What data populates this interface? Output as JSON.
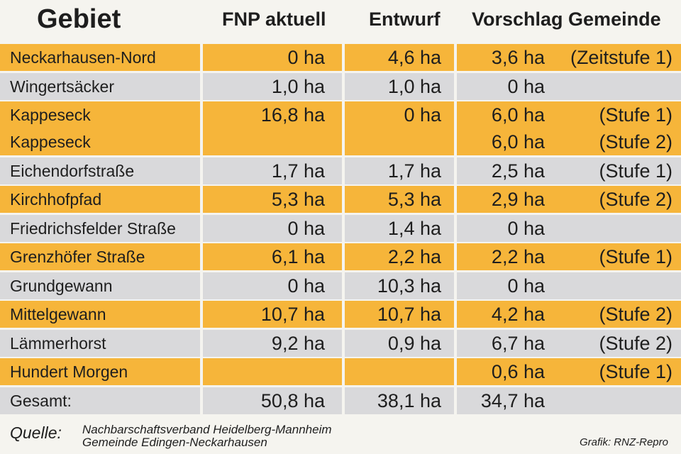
{
  "header": {
    "gebiet": "Gebiet",
    "fnp": "FNP aktuell",
    "entwurf": "Entwurf",
    "vorschlag": "Vorschlag Gemeinde"
  },
  "colors": {
    "yellow": "#f6b53a",
    "gray": "#d9d9db"
  },
  "rows": [
    {
      "bg": "yellow",
      "lines": [
        {
          "name": "Neckarhausen-Nord",
          "fnp": "0 ha",
          "entwurf": "4,6 ha",
          "vorschlag": "3,6 ha",
          "note": "(Zeitstufe 1)"
        }
      ]
    },
    {
      "bg": "gray",
      "lines": [
        {
          "name": "Wingertsäcker",
          "fnp": "1,0 ha",
          "entwurf": "1,0 ha",
          "vorschlag": "0 ha",
          "note": ""
        }
      ]
    },
    {
      "bg": "yellow",
      "lines": [
        {
          "name": "Kappeseck",
          "fnp": "16,8 ha",
          "entwurf": "0 ha",
          "vorschlag": "6,0 ha",
          "note": "(Stufe 1)"
        },
        {
          "name": "Kappeseck",
          "fnp": "",
          "entwurf": "",
          "vorschlag": "6,0 ha",
          "note": "(Stufe 2)"
        }
      ]
    },
    {
      "bg": "gray",
      "lines": [
        {
          "name": "Eichendorfstraße",
          "fnp": "1,7 ha",
          "entwurf": "1,7 ha",
          "vorschlag": "2,5 ha",
          "note": "(Stufe 1)"
        }
      ]
    },
    {
      "bg": "yellow",
      "lines": [
        {
          "name": "Kirchhofpfad",
          "fnp": "5,3 ha",
          "entwurf": "5,3 ha",
          "vorschlag": "2,9 ha",
          "note": "(Stufe 2)"
        }
      ]
    },
    {
      "bg": "gray",
      "lines": [
        {
          "name": "Friedrichsfelder Straße",
          "fnp": "0 ha",
          "entwurf": "1,4 ha",
          "vorschlag": "0 ha",
          "note": ""
        }
      ]
    },
    {
      "bg": "yellow",
      "lines": [
        {
          "name": "Grenzhöfer Straße",
          "fnp": "6,1 ha",
          "entwurf": "2,2 ha",
          "vorschlag": "2,2 ha",
          "note": "(Stufe 1)"
        }
      ]
    },
    {
      "bg": "gray",
      "lines": [
        {
          "name": "Grundgewann",
          "fnp": "0 ha",
          "entwurf": "10,3 ha",
          "vorschlag": "0 ha",
          "note": ""
        }
      ]
    },
    {
      "bg": "yellow",
      "lines": [
        {
          "name": "Mittelgewann",
          "fnp": "10,7 ha",
          "entwurf": "10,7 ha",
          "vorschlag": "4,2 ha",
          "note": "(Stufe 2)"
        }
      ]
    },
    {
      "bg": "gray",
      "lines": [
        {
          "name": "Lämmerhorst",
          "fnp": "9,2 ha",
          "entwurf": "0,9 ha",
          "vorschlag": "6,7 ha",
          "note": "(Stufe 2)"
        }
      ]
    },
    {
      "bg": "yellow",
      "lines": [
        {
          "name": "Hundert Morgen",
          "fnp": "",
          "entwurf": "",
          "vorschlag": "0,6 ha",
          "note": "(Stufe 1)"
        }
      ]
    },
    {
      "bg": "gray",
      "lines": [
        {
          "name": "Gesamt:",
          "fnp": "50,8 ha",
          "entwurf": "38,1 ha",
          "vorschlag": "34,7 ha",
          "note": ""
        }
      ]
    }
  ],
  "footer": {
    "quelle": "Quelle:",
    "source_line1": "Nachbarschaftsverband Heidelberg-Mannheim",
    "source_line2": "Gemeinde Edingen-Neckarhausen",
    "credit": "Grafik: RNZ-Repro"
  }
}
